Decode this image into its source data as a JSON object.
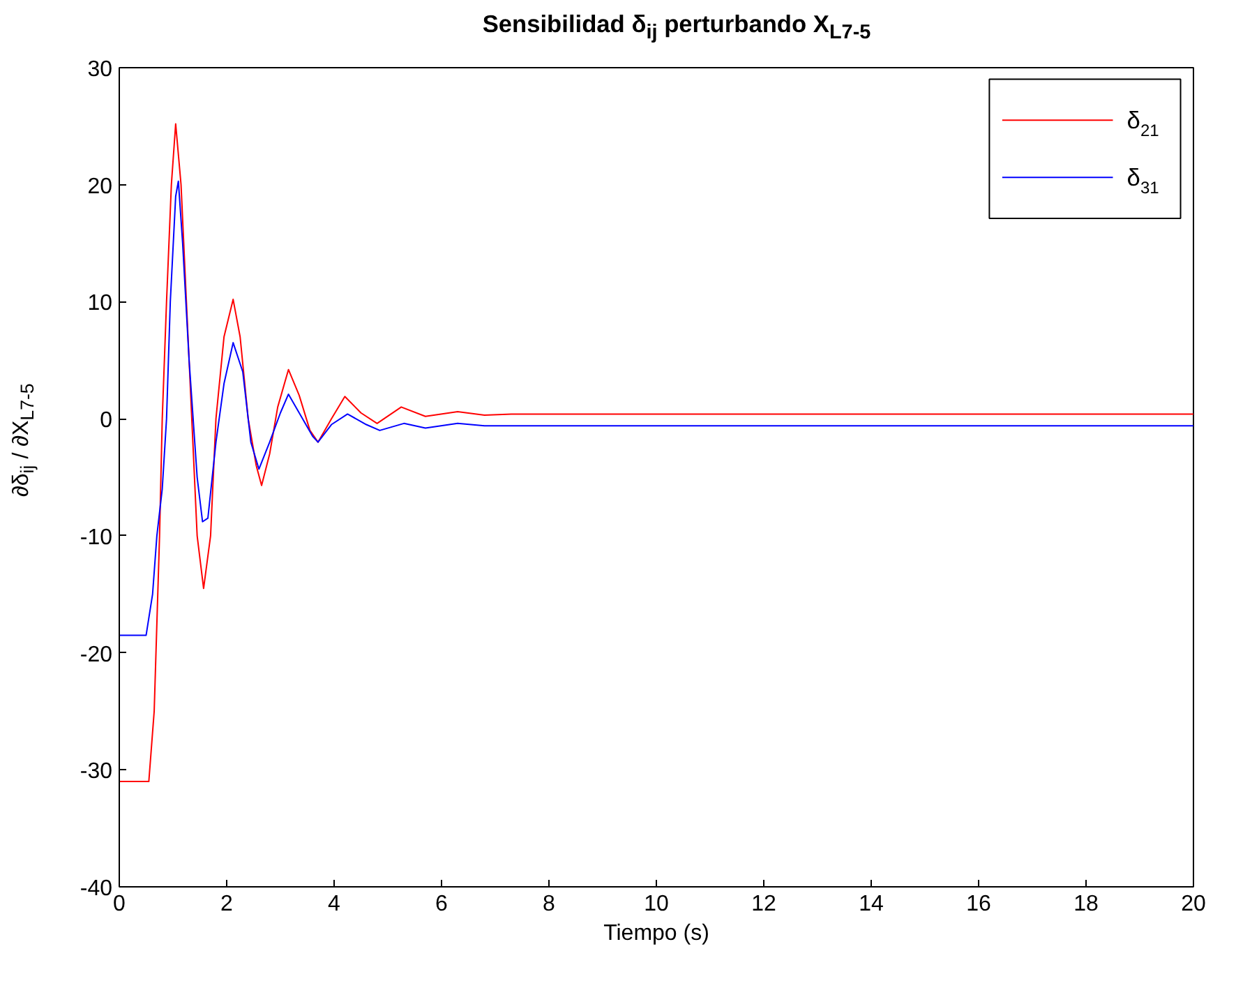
{
  "chart_data": {
    "type": "line",
    "title": "Sensibilidad δ$_{ij}$ perturbando X$_{L7-5}$",
    "xlabel": "Tiempo (s)",
    "ylabel": "∂δ$_{ij}$ / ∂X$_{L7-5}$",
    "xlim": [
      0,
      20
    ],
    "ylim": [
      -40,
      30
    ],
    "xticks": [
      0,
      2,
      4,
      6,
      8,
      10,
      12,
      14,
      16,
      18,
      20
    ],
    "yticks": [
      -40,
      -30,
      -20,
      -10,
      0,
      10,
      20,
      30
    ],
    "grid": false,
    "legend": "top right",
    "series": [
      {
        "name": "δ$_{21}$",
        "color": "#ff0000",
        "x": [
          0,
          0.55,
          0.65,
          0.75,
          0.8,
          0.88,
          0.97,
          1.05,
          1.15,
          1.25,
          1.35,
          1.45,
          1.57,
          1.7,
          1.8,
          1.95,
          2.12,
          2.25,
          2.4,
          2.55,
          2.65,
          2.8,
          2.95,
          3.15,
          3.35,
          3.55,
          3.7,
          3.95,
          4.2,
          4.5,
          4.8,
          5.25,
          5.7,
          6.3,
          6.8,
          7.3,
          20
        ],
        "values": [
          -31,
          -31,
          -25,
          -10,
          0,
          10,
          20,
          25.2,
          20,
          10,
          0,
          -10,
          -14.5,
          -10,
          0,
          7,
          10.2,
          7,
          0,
          -4,
          -5.7,
          -3,
          1,
          4.2,
          2,
          -1,
          -2,
          0,
          1.9,
          0.5,
          -0.4,
          1.0,
          0.2,
          0.6,
          0.3,
          0.4,
          0.4
        ]
      },
      {
        "name": "δ$_{31}$",
        "color": "#0000ff",
        "x": [
          0,
          0.5,
          0.62,
          0.7,
          0.8,
          0.88,
          0.95,
          1.05,
          1.1,
          1.18,
          1.3,
          1.45,
          1.55,
          1.65,
          1.8,
          1.95,
          2.12,
          2.3,
          2.45,
          2.6,
          2.8,
          3.0,
          3.15,
          3.35,
          3.6,
          3.7,
          3.95,
          4.25,
          4.6,
          4.85,
          5.3,
          5.7,
          6.3,
          6.8,
          7.5,
          20
        ],
        "values": [
          -18.5,
          -18.5,
          -15,
          -10,
          -6,
          0,
          10,
          19,
          20.3,
          15,
          5,
          -5,
          -8.8,
          -8.5,
          -2,
          3,
          6.5,
          4,
          -2,
          -4.3,
          -2,
          0.5,
          2.1,
          0.5,
          -1.5,
          -2,
          -0.5,
          0.4,
          -0.5,
          -1,
          -0.4,
          -0.8,
          -0.4,
          -0.6,
          -0.6,
          -0.6
        ]
      }
    ]
  }
}
